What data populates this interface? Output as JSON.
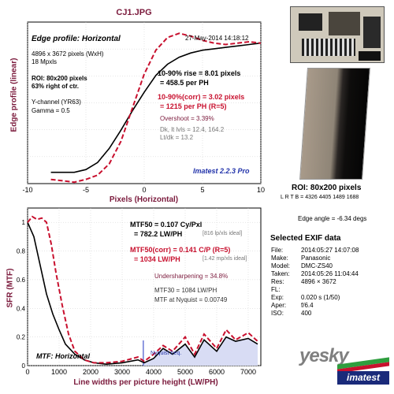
{
  "title": "CJ1.JPG",
  "top_chart": {
    "subtitle": "Edge profile: Horizontal",
    "date": "27-May-2014 14:18:12",
    "info": [
      "4896 x 3672 pixels (WxH)",
      "18 Mpxls"
    ],
    "roi": [
      "ROI: 80x200 pixels",
      "63% right of ctr."
    ],
    "channel": [
      "Y-channel (YR63)",
      "Gamma = 0.5"
    ],
    "rise_line1": "10-90% rise = 8.01 pixels",
    "rise_line2": "= 458.5 per PH",
    "corr_line1": "10-90%(corr) = 3.02 pixels",
    "corr_line2": "= 1215 per PH (R=5)",
    "overshoot": "Overshoot = 3.39%",
    "dk_line": "Dk, lt lvls = 12.4, 164.2",
    "ltdk_line": "Lt/dk = 13.2",
    "imatest": "Imatest 2.2.3 Pro",
    "ylabel": "Edge profile (linear)",
    "xlabel": "Pixels (Horizontal)"
  },
  "bottom_chart": {
    "ylabel": "SFR (MTF)",
    "xlabel": "Line widths per picture height (LW/PH)",
    "mtf50_line1": "MTF50 = 0.107 Cy/Pxl",
    "mtf50_line2": "= 782.2 LW/PH",
    "mtf50_ideal": "[816 lp/xls ideal]",
    "mtf50c_line1": "MTF50(corr) = 0.141 C/P (R=5)",
    "mtf50c_line2": "= 1034 LW/PH",
    "mtf50c_ideal": "[1.42 mp/xls ideal]",
    "undersharp": "Undersharpening = 34.8%",
    "mtf30": "MTF30 = 1084 LW/PH",
    "nyq_mtf": "MTF at Nyquist = 0.00749",
    "nyq_label": "Nyquist freq.",
    "panel_label": "MTF: Horizontal"
  },
  "right_panel": {
    "roi_label": "ROI: 80x200 pixels",
    "lrtb": "L R  T B = 4326 4405  1489 1688",
    "edge_angle": "Edge angle = -6.34 degs",
    "exif_title": "Selected EXIF data",
    "exif": [
      {
        "k": "File:",
        "v": "2014:05:27 14:07:08"
      },
      {
        "k": "Make:",
        "v": "Panasonic"
      },
      {
        "k": "Model:",
        "v": "DMC-ZS40"
      },
      {
        "k": "Taken:",
        "v": "2014:05:26 11:04:44"
      },
      {
        "k": "Res:",
        "v": "4896 × 3672"
      },
      {
        "k": "FL:",
        "v": ""
      },
      {
        "k": "Exp:",
        "v": "0.020 s  (1/50)"
      },
      {
        "k": "Aper:",
        "v": "f/6.4"
      },
      {
        "k": "ISO:",
        "v": "400"
      }
    ],
    "brand": "imatest",
    "watermark": "yesky"
  },
  "colors": {
    "maroon": "#7b1a3c",
    "crimson": "#c8102e",
    "blue": "#2233aa",
    "fill": "#d8dcf4"
  },
  "chart_data": [
    {
      "type": "line",
      "title": "Edge profile: Horizontal",
      "xlabel": "Pixels (Horizontal)",
      "ylabel": "Edge profile (linear)",
      "xlim": [
        -10,
        10
      ],
      "ylim": [
        0,
        1.15
      ],
      "xticks": [
        -10,
        -5,
        0,
        5,
        10
      ],
      "grid": true,
      "series": [
        {
          "style": "solid",
          "color": "black",
          "x": [
            -8,
            -6,
            -5,
            -4,
            -3,
            -2,
            -1,
            0,
            1,
            2,
            3,
            4,
            5,
            6,
            7,
            8,
            9,
            10
          ],
          "y": [
            0.08,
            0.08,
            0.1,
            0.15,
            0.25,
            0.38,
            0.52,
            0.65,
            0.77,
            0.85,
            0.9,
            0.93,
            0.95,
            0.96,
            0.97,
            0.98,
            0.99,
            1.0
          ]
        },
        {
          "style": "dashed",
          "color": "crimson",
          "x": [
            -8,
            -7,
            -6,
            -5,
            -4,
            -3,
            -2,
            -1,
            0,
            1,
            2,
            3,
            4,
            5,
            6,
            7,
            8,
            9,
            10
          ],
          "y": [
            0.03,
            0.02,
            0.01,
            0.03,
            0.06,
            0.14,
            0.3,
            0.54,
            0.78,
            0.95,
            1.04,
            1.07,
            1.05,
            1.02,
            1.0,
            0.99,
            1.0,
            1.01,
            1.0
          ]
        }
      ]
    },
    {
      "type": "line",
      "title": "MTF: Horizontal",
      "xlabel": "Line widths per picture height (LW/PH)",
      "ylabel": "SFR (MTF)",
      "xlim": [
        0,
        7400
      ],
      "ylim": [
        0,
        1.1
      ],
      "xticks": [
        0,
        1000,
        2000,
        3000,
        4000,
        5000,
        6000,
        7000
      ],
      "yticks": [
        0,
        0.2,
        0.4,
        0.6,
        0.8,
        1
      ],
      "nyquist": 3672,
      "grid": true,
      "series": [
        {
          "style": "solid",
          "color": "black",
          "x": [
            0,
            200,
            400,
            600,
            800,
            1000,
            1200,
            1500,
            1800,
            2100,
            2500,
            3000,
            3500,
            3700,
            4000,
            4300,
            4600,
            5000,
            5300,
            5600,
            6000,
            6300,
            6600,
            7000,
            7300
          ],
          "y": [
            1.0,
            0.9,
            0.7,
            0.5,
            0.36,
            0.25,
            0.15,
            0.08,
            0.04,
            0.02,
            0.01,
            0.02,
            0.04,
            0.02,
            0.05,
            0.12,
            0.08,
            0.15,
            0.06,
            0.18,
            0.1,
            0.2,
            0.17,
            0.19,
            0.15
          ]
        },
        {
          "style": "dashed",
          "color": "crimson",
          "x": [
            0,
            150,
            300,
            450,
            600,
            750,
            900,
            1100,
            1300,
            1500,
            1800,
            2100,
            2500,
            3000,
            3500,
            3700,
            4000,
            4300,
            4600,
            5000,
            5300,
            5600,
            6000,
            6300,
            6600,
            7000,
            7300
          ],
          "y": [
            1.0,
            1.04,
            1.02,
            1.03,
            1.0,
            0.85,
            0.65,
            0.42,
            0.22,
            0.1,
            0.04,
            0.02,
            0.02,
            0.03,
            0.06,
            0.03,
            0.08,
            0.14,
            0.1,
            0.2,
            0.08,
            0.22,
            0.12,
            0.25,
            0.18,
            0.23,
            0.17
          ]
        }
      ]
    }
  ]
}
